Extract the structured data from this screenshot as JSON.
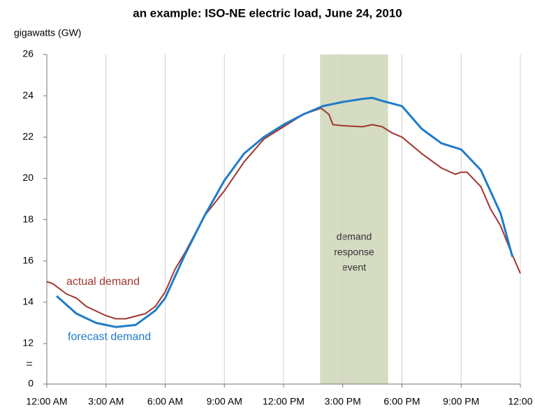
{
  "chart_data": {
    "type": "line",
    "title": "an example: ISO-NE electric load, June 24, 2010",
    "y_label": "gigawatts (GW)",
    "xlim": [
      0,
      24
    ],
    "xticks": [
      {
        "value": 0,
        "label": "12:00 AM"
      },
      {
        "value": 3,
        "label": "3:00 AM"
      },
      {
        "value": 6,
        "label": "6:00 AM"
      },
      {
        "value": 9,
        "label": "9:00 AM"
      },
      {
        "value": 12,
        "label": "12:00 PM"
      },
      {
        "value": 15,
        "label": "3:00 PM"
      },
      {
        "value": 18,
        "label": "6:00 PM"
      },
      {
        "value": 21,
        "label": "9:00 PM"
      },
      {
        "value": 24,
        "label": "12:00"
      }
    ],
    "ylim": [
      0,
      26
    ],
    "yticks": [
      0,
      12,
      14,
      16,
      18,
      20,
      22,
      24,
      26
    ],
    "y_break": [
      0,
      12
    ],
    "grid": "x",
    "shaded_region": {
      "x": [
        13.85,
        17.3
      ],
      "color": "#d5dcc2",
      "label": [
        "demand",
        "response",
        "event"
      ]
    },
    "series": [
      {
        "name": "actual demand",
        "color": "#a0362f",
        "x": [
          0,
          0.3,
          1,
          1.5,
          2,
          3,
          3.5,
          4,
          5,
          5.5,
          6,
          6.5,
          7,
          8,
          9,
          10,
          11,
          12,
          13,
          13.9,
          14.3,
          14.5,
          15,
          16,
          16.5,
          17,
          17.5,
          18,
          19,
          20,
          20.7,
          21,
          21.3,
          22,
          22.5,
          23,
          23.5,
          24
        ],
        "values": [
          15.0,
          14.9,
          14.4,
          14.2,
          13.8,
          13.35,
          13.2,
          13.2,
          13.45,
          13.8,
          14.5,
          15.6,
          16.4,
          18.2,
          19.4,
          20.8,
          21.9,
          22.5,
          23.1,
          23.4,
          23.1,
          22.6,
          22.55,
          22.5,
          22.6,
          22.5,
          22.2,
          22.0,
          21.2,
          20.5,
          20.2,
          20.3,
          20.3,
          19.6,
          18.5,
          17.7,
          16.5,
          15.4
        ]
      },
      {
        "name": "forecast demand",
        "color": "#1f7bc9",
        "x": [
          0.5,
          1.5,
          2.5,
          3.5,
          4.5,
          5.5,
          6,
          7,
          8,
          9,
          10,
          11,
          12,
          13,
          14,
          15,
          16,
          16.5,
          17,
          18,
          19,
          20,
          21,
          22,
          23,
          23.6
        ],
        "values": [
          14.3,
          13.45,
          13.0,
          12.8,
          12.9,
          13.6,
          14.2,
          16.3,
          18.2,
          19.9,
          21.2,
          22.0,
          22.6,
          23.1,
          23.5,
          23.7,
          23.85,
          23.9,
          23.75,
          23.5,
          22.4,
          21.7,
          21.4,
          20.4,
          18.3,
          16.2
        ]
      }
    ]
  }
}
